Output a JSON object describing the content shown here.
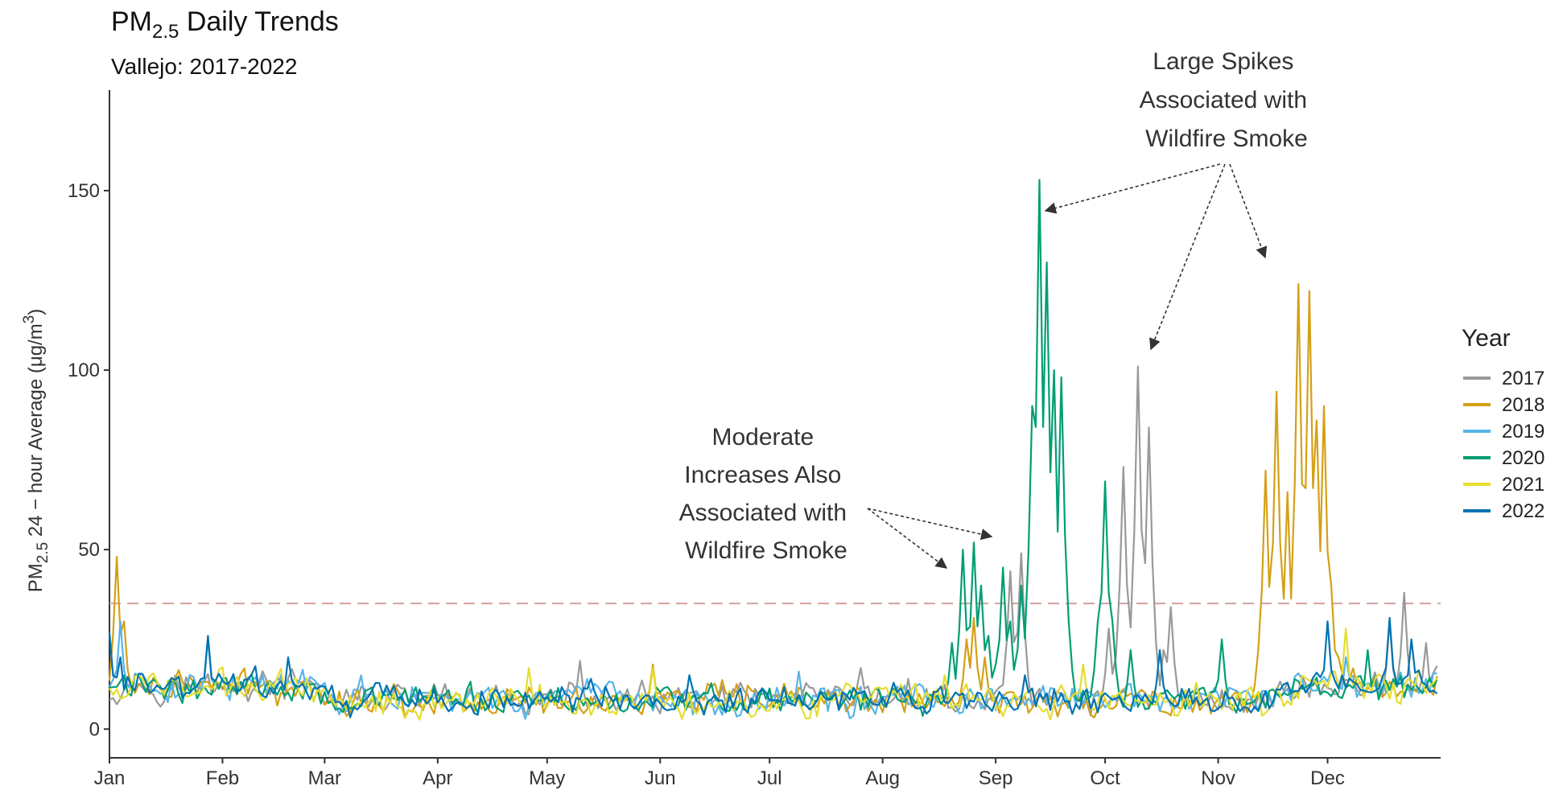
{
  "chart_data": {
    "type": "line",
    "title": "PM",
    "title_subscript": "2.5",
    "title_rest": " Daily Trends",
    "subtitle": "Vallejo: 2017-2022",
    "ylabel_prefix": "PM",
    "ylabel_subscript": "2.5",
    "ylabel_rest": " 24 − hour Average (μg/m",
    "ylabel_superscript": "3",
    "ylabel_close": ")",
    "xlabel": "",
    "x_tick_labels": [
      "Jan",
      "Feb",
      "Mar",
      "Apr",
      "May",
      "Jun",
      "Jul",
      "Aug",
      "Sep",
      "Oct",
      "Nov",
      "Dec"
    ],
    "x_tick_days": [
      1,
      32,
      60,
      91,
      121,
      152,
      182,
      213,
      244,
      274,
      305,
      335
    ],
    "xlim": [
      1,
      366
    ],
    "y_ticks": [
      0,
      50,
      100,
      150
    ],
    "ylim": [
      -8,
      178
    ],
    "threshold": 35,
    "threshold_color": "#d4a0a0",
    "grid": false,
    "legend_title": "Year",
    "legend_position": "right",
    "series": [
      {
        "name": "2017",
        "color": "#999999",
        "peaks": [
          [
            130,
            19
          ],
          [
            207,
            17
          ],
          [
            220,
            14
          ],
          [
            248,
            44
          ],
          [
            251,
            49
          ],
          [
            275,
            28
          ],
          [
            279,
            73
          ],
          [
            283,
            101
          ],
          [
            286,
            84
          ],
          [
            290,
            22
          ],
          [
            292,
            34
          ],
          [
            352,
            30
          ],
          [
            356,
            38
          ],
          [
            362,
            24
          ]
        ]
      },
      {
        "name": "2018",
        "color": "#D4A017",
        "peaks": [
          [
            3,
            48
          ],
          [
            5,
            30
          ],
          [
            150,
            18
          ],
          [
            236,
            25
          ],
          [
            238,
            31
          ],
          [
            241,
            20
          ],
          [
            316,
            22
          ],
          [
            318,
            72
          ],
          [
            321,
            94
          ],
          [
            324,
            66
          ],
          [
            327,
            124
          ],
          [
            330,
            122
          ],
          [
            332,
            86
          ],
          [
            334,
            90
          ],
          [
            336,
            40
          ],
          [
            338,
            20
          ]
        ]
      },
      {
        "name": "2019",
        "color": "#56B4E9",
        "peaks": [
          [
            4,
            30
          ],
          [
            28,
            25
          ],
          [
            70,
            15
          ],
          [
            190,
            16
          ],
          [
            300,
            10
          ],
          [
            340,
            20
          ]
        ]
      },
      {
        "name": "2020",
        "color": "#009E73",
        "peaks": [
          [
            232,
            24
          ],
          [
            235,
            50
          ],
          [
            238,
            52
          ],
          [
            240,
            40
          ],
          [
            242,
            26
          ],
          [
            244,
            18
          ],
          [
            246,
            45
          ],
          [
            248,
            30
          ],
          [
            251,
            40
          ],
          [
            254,
            90
          ],
          [
            256,
            153
          ],
          [
            258,
            130
          ],
          [
            260,
            100
          ],
          [
            262,
            98
          ],
          [
            264,
            30
          ],
          [
            272,
            30
          ],
          [
            274,
            69
          ],
          [
            276,
            30
          ],
          [
            281,
            22
          ],
          [
            306,
            25
          ],
          [
            346,
            22
          ]
        ]
      },
      {
        "name": "2021",
        "color": "#E6DD2E",
        "peaks": [
          [
            116,
            17
          ],
          [
            150,
            17
          ],
          [
            230,
            15
          ],
          [
            268,
            18
          ],
          [
            340,
            28
          ]
        ]
      },
      {
        "name": "2022",
        "color": "#0072B2",
        "peaks": [
          [
            1,
            27
          ],
          [
            4,
            20
          ],
          [
            28,
            26
          ],
          [
            50,
            20
          ],
          [
            90,
            11
          ],
          [
            160,
            15
          ],
          [
            252,
            15
          ],
          [
            289,
            22
          ],
          [
            335,
            30
          ],
          [
            352,
            31
          ],
          [
            358,
            25
          ]
        ]
      }
    ]
  },
  "annotations": {
    "moderate_lines": [
      "Moderate",
      "Increases Also",
      "Associated with",
      "Wildfire Smoke"
    ],
    "large_lines": [
      "Large Spikes",
      "Associated with",
      "Wildfire Smoke"
    ]
  }
}
